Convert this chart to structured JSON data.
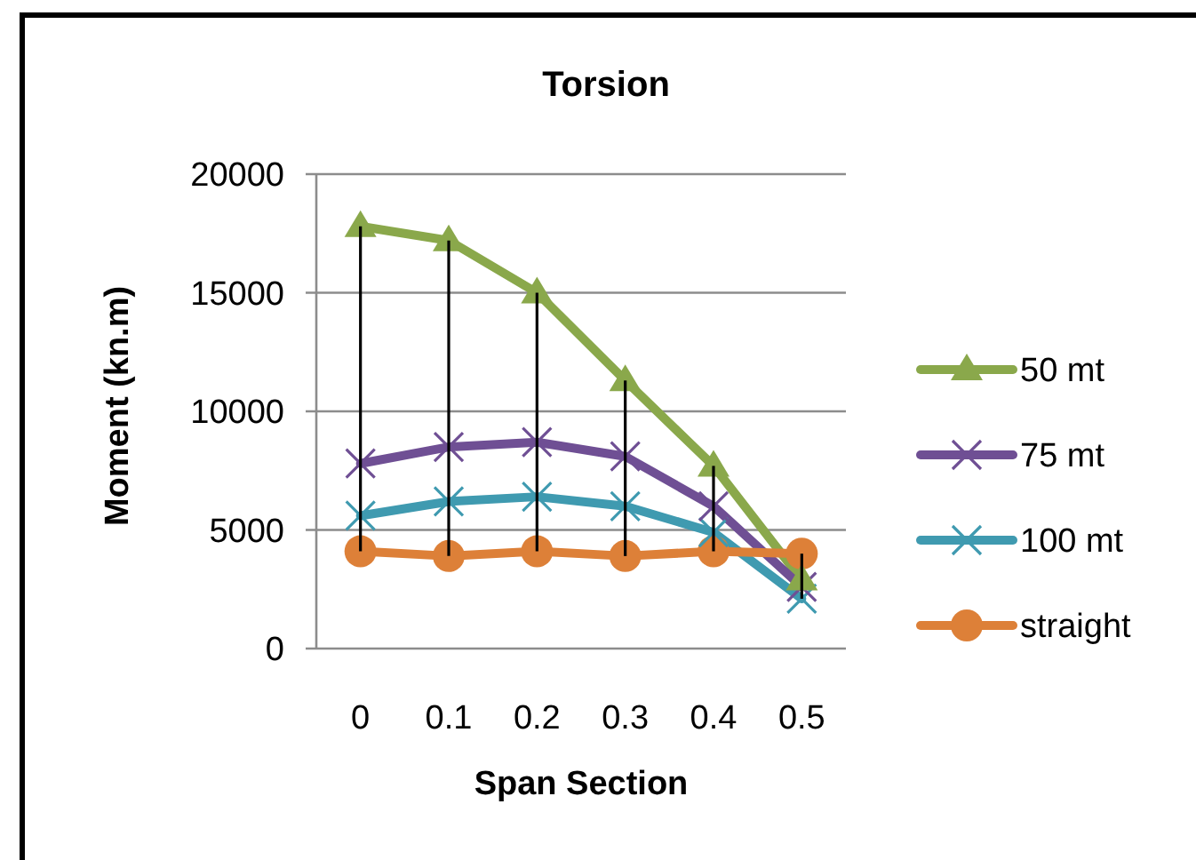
{
  "chart_data": {
    "type": "line",
    "title": "Torsion",
    "xlabel": "Span Section",
    "ylabel": "Moment (kn.m)",
    "categories": [
      "0",
      "0.1",
      "0.2",
      "0.3",
      "0.4",
      "0.5"
    ],
    "series": [
      {
        "name": "50 mt",
        "color": "#8aa84b",
        "marker": "triangle",
        "values": [
          17800,
          17200,
          15000,
          11300,
          7700,
          2900
        ]
      },
      {
        "name": "75 mt",
        "color": "#6f4f94",
        "marker": "cross",
        "values": [
          7800,
          8500,
          8700,
          8100,
          6000,
          2600
        ]
      },
      {
        "name": "100 mt",
        "color": "#3f9ab0",
        "marker": "cross",
        "values": [
          5600,
          6200,
          6400,
          6000,
          4900,
          2100
        ]
      },
      {
        "name": "straight",
        "color": "#dd8038",
        "marker": "circle",
        "values": [
          4100,
          3900,
          4100,
          3900,
          4100,
          4000
        ],
        "errors": [
          [
            4100,
            17800
          ],
          [
            3900,
            17200
          ],
          [
            4100,
            15000
          ],
          [
            3900,
            11300
          ],
          [
            4100,
            7700
          ],
          [
            2100,
            4000
          ]
        ]
      }
    ],
    "ylim": [
      0,
      20000
    ],
    "yticks": [
      0,
      5000,
      10000,
      15000,
      20000
    ],
    "grid": "y",
    "legend": "right",
    "line_style": "solid"
  }
}
